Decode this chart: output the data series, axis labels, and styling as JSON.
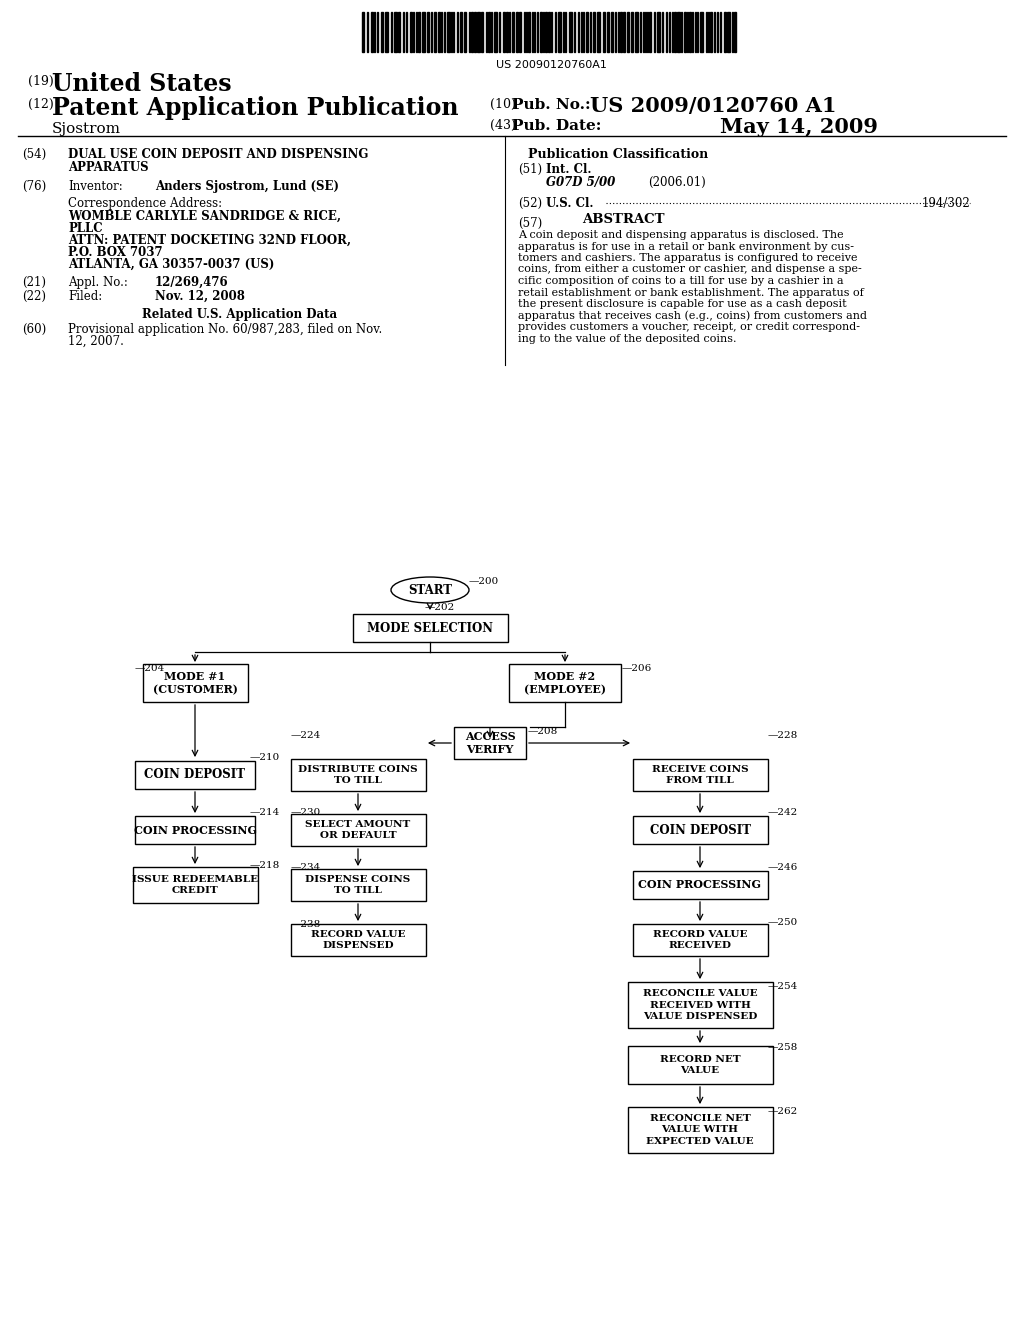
{
  "bg_color": "#ffffff",
  "barcode_text": "US 20090120760A1",
  "header": {
    "label19": "(19)",
    "united_states": "United States",
    "label12": "(12)",
    "patent_app": "Patent Application Publication",
    "inventor_name": "Sjostrom",
    "label10": "(10)",
    "pub_no_label": "Pub. No.:",
    "pub_no": "US 2009/0120760 A1",
    "label43": "(43)",
    "pub_date_label": "Pub. Date:",
    "pub_date": "May 14, 2009"
  },
  "left_col": {
    "label54": "(54)",
    "title_line1": "DUAL USE COIN DEPOSIT AND DISPENSING",
    "title_line2": "APPARATUS",
    "label76": "(76)",
    "inventor_label": "Inventor:",
    "inventor": "Anders Sjostrom, Lund (SE)",
    "corr_addr": "Correspondence Address:",
    "addr1": "WOMBLE CARLYLE SANDRIDGE & RICE,",
    "addr2": "PLLC",
    "addr3": "ATTN: PATENT DOCKETING 32ND FLOOR,",
    "addr4": "P.O. BOX 7037",
    "addr5": "ATLANTA, GA 30357-0037 (US)",
    "label21": "(21)",
    "appl_no_label": "Appl. No.:",
    "appl_no": "12/269,476",
    "label22": "(22)",
    "filed_label": "Filed:",
    "filed": "Nov. 12, 2008",
    "related_title": "Related U.S. Application Data",
    "label60": "(60)",
    "prov_line1": "Provisional application No. 60/987,283, filed on Nov.",
    "prov_line2": "12, 2007."
  },
  "right_col": {
    "pub_class_title": "Publication Classification",
    "label51": "(51)",
    "int_cl_label": "Int. Cl.",
    "int_cl": "G07D 5/00",
    "int_cl_year": "(2006.01)",
    "label52": "(52)",
    "us_cl_label": "U.S. Cl.",
    "us_cl_dots": "194/302",
    "label57": "(57)",
    "abstract_title": "ABSTRACT",
    "abs_lines": [
      "A coin deposit and dispensing apparatus is disclosed. The",
      "apparatus is for use in a retail or bank environment by cus-",
      "tomers and cashiers. The apparatus is configured to receive",
      "coins, from either a customer or cashier, and dispense a spe-",
      "cific composition of coins to a till for use by a cashier in a",
      "retail establishment or bank establishment. The apparatus of",
      "the present disclosure is capable for use as a cash deposit",
      "apparatus that receives cash (e.g., coins) from customers and",
      "provides customers a voucher, receipt, or credit correspond-",
      "ing to the value of the deposited coins."
    ]
  },
  "flowchart": {
    "start_label": "START",
    "start_ref": "200",
    "mode_sel_label": "MODE SELECTION",
    "mode_sel_ref": "202",
    "mode1_label": "MODE #1\n(CUSTOMER)",
    "mode1_ref": "204",
    "mode2_label": "MODE #2\n(EMPLOYEE)",
    "mode2_ref": "206",
    "access_label": "ACCESS\nVERIFY",
    "access_ref": "208",
    "coin_dep1_label": "COIN DEPOSIT",
    "coin_dep1_ref": "210",
    "coin_proc1_label": "COIN PROCESSING",
    "coin_proc1_ref": "214",
    "issue_label": "ISSUE REDEEMABLE\nCREDIT",
    "issue_ref": "218",
    "dist_label": "DISTRIBUTE COINS\nTO TILL",
    "dist_ref": "224",
    "sel_amt_label": "SELECT AMOUNT\nOR DEFAULT",
    "sel_amt_ref": "230",
    "disp_label": "DISPENSE COINS\nTO TILL",
    "disp_ref": "234",
    "rec_val_disp_label": "RECORD VALUE\nDISPENSED",
    "rec_val_disp_ref": "238",
    "recv_coins_label": "RECEIVE COINS\nFROM TILL",
    "recv_coins_ref": "228",
    "coin_dep2_label": "COIN DEPOSIT",
    "coin_dep2_ref": "242",
    "coin_proc2_label": "COIN PROCESSING",
    "coin_proc2_ref": "246",
    "rec_val_recv_label": "RECORD VALUE\nRECEIVED",
    "rec_val_recv_ref": "250",
    "recon_label": "RECONCILE VALUE\nRECEIVED WITH\nVALUE DISPENSED",
    "recon_ref": "254",
    "rec_net_label": "RECORD NET\nVALUE",
    "rec_net_ref": "258",
    "recon2_label": "RECONCILE NET\nVALUE WITH\nEXPECTED VALUE",
    "recon2_ref": "262"
  }
}
